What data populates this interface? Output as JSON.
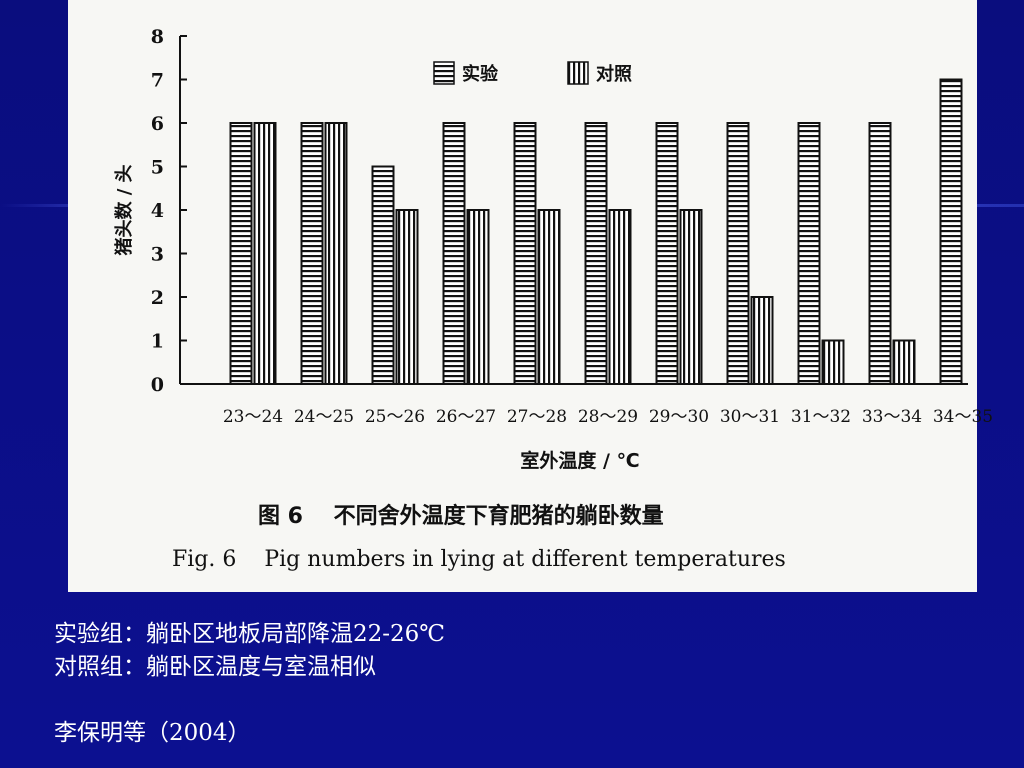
{
  "chart_data": {
    "type": "bar",
    "categories": [
      "23～24",
      "24～25",
      "25～26",
      "26～27",
      "27～28",
      "28～29",
      "29～30",
      "30～31",
      "31～32",
      "33～34",
      "34～35"
    ],
    "series": [
      {
        "name": "实验",
        "pattern": "horizontal-stripes",
        "values": [
          6,
          6,
          5,
          6,
          6,
          6,
          6,
          6,
          6,
          6,
          7
        ]
      },
      {
        "name": "对照",
        "pattern": "vertical-stripes",
        "values": [
          6,
          6,
          4,
          4,
          4,
          4,
          4,
          2,
          1,
          1,
          null
        ]
      }
    ],
    "title": "图 6    不同舍外温度下育肥猪的躺卧数量",
    "subtitle": "Fig. 6    Pig numbers in lying at different temperatures",
    "xlabel": "室外温度 / ℃",
    "ylabel": "猪头数 / 头",
    "ylim": [
      0,
      8
    ],
    "yticks": [
      "0",
      "1",
      "2",
      "3",
      "4",
      "5",
      "6",
      "7",
      "8"
    ],
    "grid": false,
    "legend_position": "top-center"
  },
  "notes": {
    "line1": "实验组：躺卧区地板局部降温22-26℃",
    "line2": "对照组：躺卧区温度与室温相似",
    "citation": "李保明等（2004）"
  },
  "colors": {
    "background": "#0b0e86",
    "figure_background": "#f7f7f4",
    "ink": "#111111",
    "text": "#ffffff"
  }
}
